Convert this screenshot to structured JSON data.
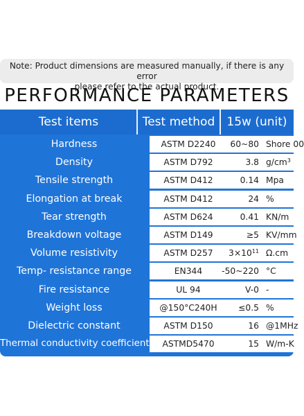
{
  "note": {
    "line1": "Note: Product dimensions are measured manually, if there is any error",
    "line2": "please refer to the actual product."
  },
  "title": "PERFORMANCE PARAMETERS",
  "table": {
    "headers": [
      "Test items",
      "Test method",
      "15w (unit)"
    ],
    "rows": [
      {
        "item": "Hardness",
        "method": "ASTM D2240",
        "value": "60~80",
        "unit": "Shore 00"
      },
      {
        "item": "Density",
        "method": "ASTM D792",
        "value": "3.8",
        "unit": "g/cm",
        "unit_sup": "3"
      },
      {
        "item": "Tensile strength",
        "method": "ASTM D412",
        "value": "0.14",
        "unit": "Mpa"
      },
      {
        "item": "Elongation at break",
        "method": "ASTM D412",
        "value": "24",
        "unit": "%"
      },
      {
        "item": "Tear strength",
        "method": "ASTM D624",
        "value": "0.41",
        "unit": "KN/m"
      },
      {
        "item": "Breakdown voltage",
        "method": "ASTM D149",
        "value": "≥5",
        "unit": "KV/mm"
      },
      {
        "item": "Volume resistivity",
        "method": "ASTM D257",
        "value": "3×10",
        "value_sup": "11",
        "unit": "Ω.cm"
      },
      {
        "item": "Temp- resistance range",
        "method": "EN344",
        "value": "-50~220",
        "unit": "°C"
      },
      {
        "item": "Fire resistance",
        "method": "UL 94",
        "value": "V-0",
        "unit": "-"
      },
      {
        "item": "Weight loss",
        "method": "@150°C240H",
        "value": "≤0.5",
        "unit": "%"
      },
      {
        "item": "Dielectric constant",
        "method": "ASTM D150",
        "value": "16",
        "unit": "@1MHz"
      },
      {
        "item": "Thermal conductivity coefficient",
        "method": "ASTMD5470",
        "value": "15",
        "unit": "W/m-K"
      }
    ]
  }
}
